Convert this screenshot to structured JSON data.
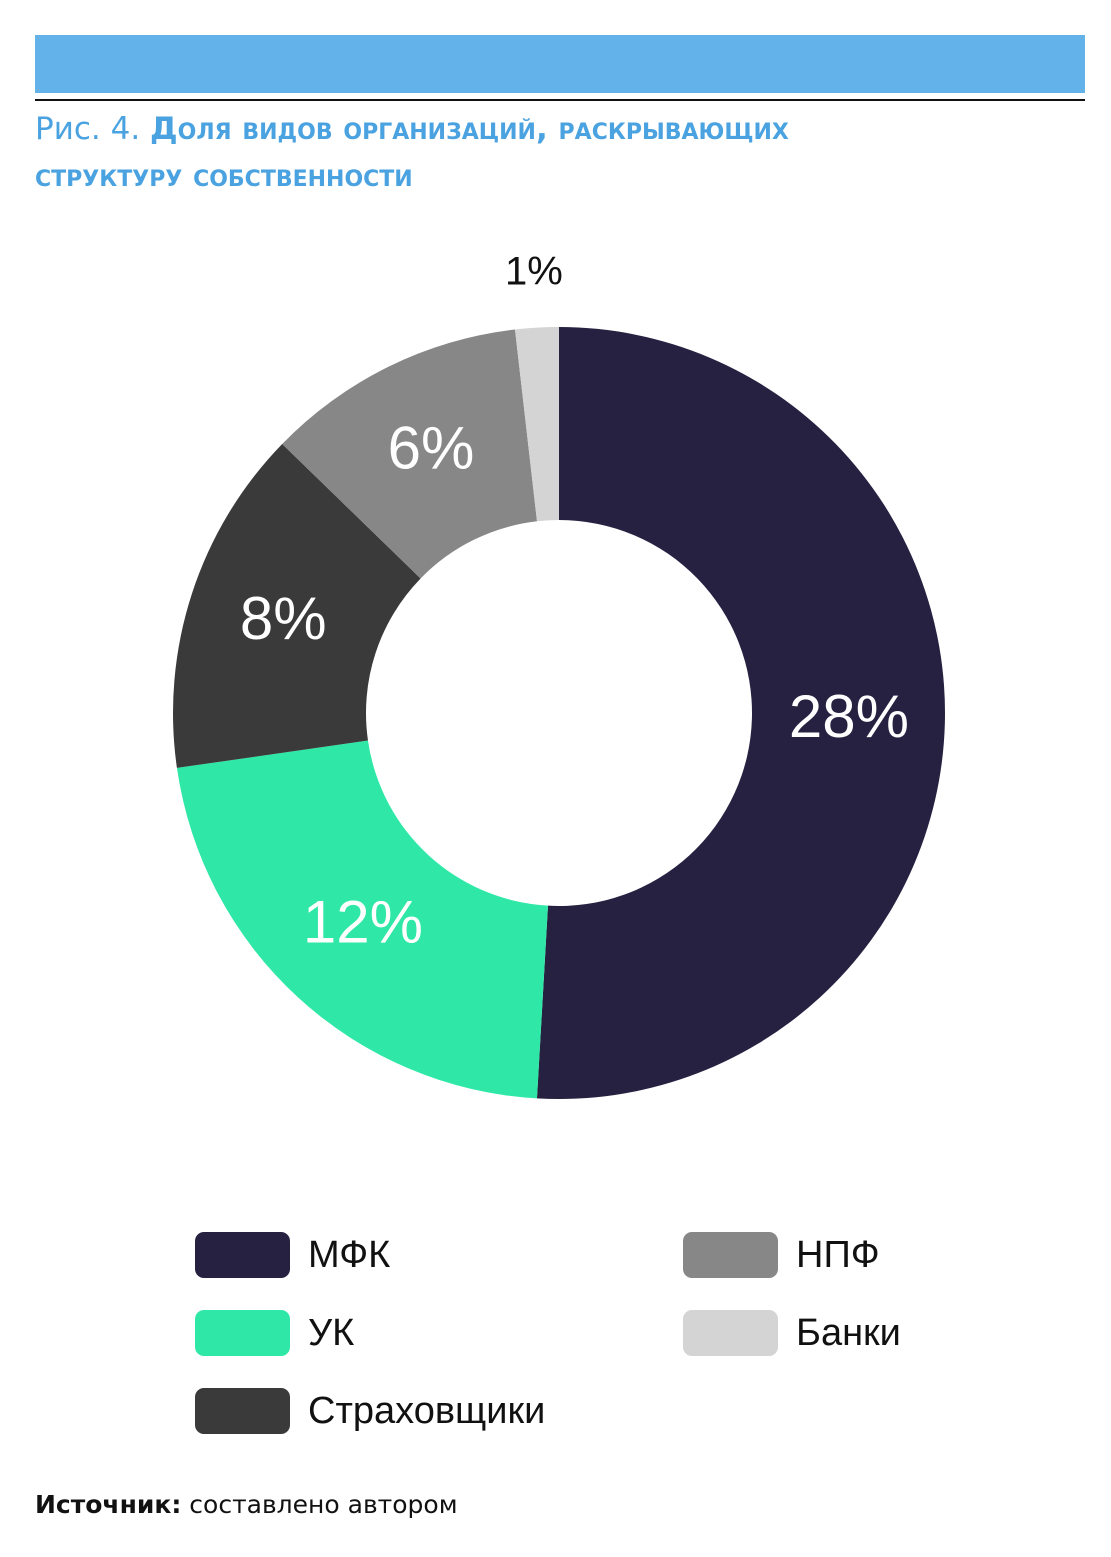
{
  "chart_data": {
    "type": "pie",
    "donut": true,
    "figure_label": "Рис. 4.",
    "title": "Доля видов организаций, раскрывающих структуру собственности",
    "categories": [
      "МФК",
      "УК",
      "Страховщики",
      "НПФ",
      "Банки"
    ],
    "values": [
      28,
      12,
      8,
      6,
      1
    ],
    "value_labels": [
      "28%",
      "12%",
      "8%",
      "6%",
      "1%"
    ],
    "colors": [
      "#262141",
      "#2fe8a7",
      "#3a3a3a",
      "#888787",
      "#d4d4d4"
    ],
    "source_label": "Источник:",
    "source": "составлено автором"
  }
}
